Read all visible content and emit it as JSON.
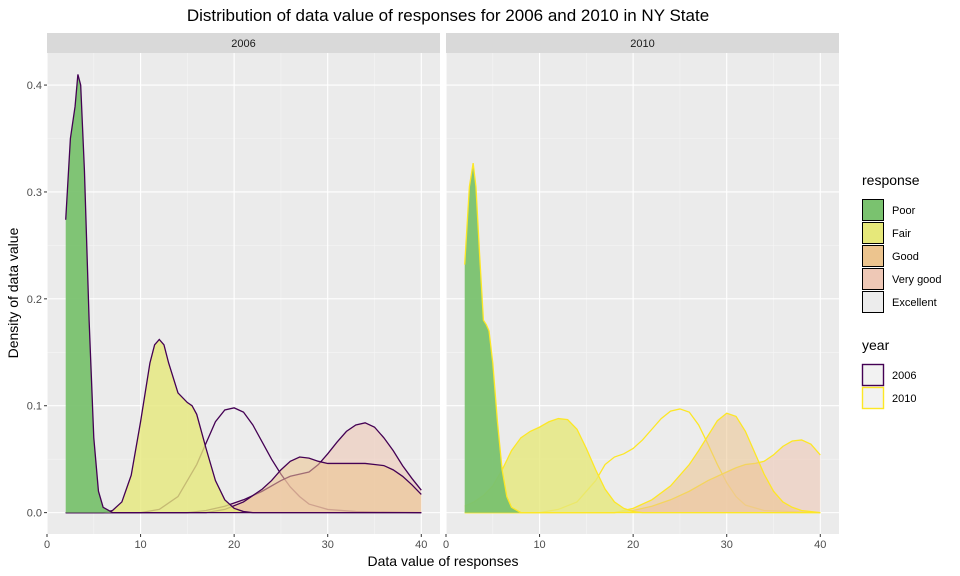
{
  "chart_data": {
    "type": "area",
    "title": "Distribution of data value of responses for 2006 and 2010 in NY State",
    "xlabel": "Data value of responses",
    "ylabel": "Density of data value",
    "xlim": [
      0,
      42
    ],
    "ylim": [
      -0.02,
      0.43
    ],
    "x_ticks": [
      0,
      10,
      20,
      30,
      40
    ],
    "y_ticks": [
      0.0,
      0.1,
      0.2,
      0.3,
      0.4
    ],
    "x_tick_labels": [
      "0",
      "10",
      "20",
      "30",
      "40"
    ],
    "y_tick_labels": [
      "0.0",
      "0.1",
      "0.2",
      "0.3",
      "0.4"
    ],
    "grid": true,
    "legend_placement": "right",
    "legends": [
      {
        "title": "response",
        "kind": "fill",
        "entries": [
          {
            "label": "Poor",
            "color": "#7ac26f"
          },
          {
            "label": "Fair",
            "color": "#e6e87a"
          },
          {
            "label": "Good",
            "color": "#ecc48e"
          },
          {
            "label": "Very good",
            "color": "#eec8b6"
          },
          {
            "label": "Excellent",
            "color": "#ececec"
          }
        ]
      },
      {
        "title": "year",
        "kind": "color",
        "entries": [
          {
            "label": "2006",
            "color": "#440154"
          },
          {
            "label": "2010",
            "color": "#fde725"
          }
        ]
      }
    ],
    "panels": [
      {
        "strip": "2006",
        "line_color": "#440154",
        "series": [
          {
            "name": "Excellent",
            "fill": "#ececec",
            "fill_opacity": 0.55,
            "points": [
              [
                2,
                0
              ],
              [
                10,
                0
              ],
              [
                12,
                0.003
              ],
              [
                14,
                0.015
              ],
              [
                16,
                0.045
              ],
              [
                17,
                0.065
              ],
              [
                18,
                0.085
              ],
              [
                19,
                0.096
              ],
              [
                20,
                0.098
              ],
              [
                21,
                0.094
              ],
              [
                22,
                0.082
              ],
              [
                23,
                0.066
              ],
              [
                24,
                0.05
              ],
              [
                25,
                0.036
              ],
              [
                26,
                0.024
              ],
              [
                27,
                0.015
              ],
              [
                28,
                0.008
              ],
              [
                30,
                0.003
              ],
              [
                33,
                0.001
              ],
              [
                40,
                0
              ]
            ]
          },
          {
            "name": "Very good",
            "fill": "#eec8b6",
            "fill_opacity": 0.6,
            "points": [
              [
                2,
                0
              ],
              [
                15,
                0
              ],
              [
                17,
                0.002
              ],
              [
                19,
                0.006
              ],
              [
                21,
                0.012
              ],
              [
                23,
                0.02
              ],
              [
                25,
                0.03
              ],
              [
                26,
                0.034
              ],
              [
                27,
                0.036
              ],
              [
                28,
                0.038
              ],
              [
                29,
                0.045
              ],
              [
                30,
                0.055
              ],
              [
                31,
                0.066
              ],
              [
                32,
                0.076
              ],
              [
                33,
                0.082
              ],
              [
                34,
                0.084
              ],
              [
                35,
                0.08
              ],
              [
                36,
                0.07
              ],
              [
                37,
                0.058
              ],
              [
                38,
                0.044
              ],
              [
                39,
                0.032
              ],
              [
                40,
                0.021
              ]
            ]
          },
          {
            "name": "Good",
            "fill": "#ecc48e",
            "fill_opacity": 0.55,
            "points": [
              [
                2,
                0
              ],
              [
                17,
                0
              ],
              [
                19,
                0.003
              ],
              [
                21,
                0.01
              ],
              [
                23,
                0.022
              ],
              [
                24,
                0.03
              ],
              [
                25,
                0.04
              ],
              [
                26,
                0.048
              ],
              [
                27,
                0.052
              ],
              [
                28,
                0.051
              ],
              [
                29,
                0.048
              ],
              [
                30,
                0.046
              ],
              [
                31,
                0.046
              ],
              [
                32,
                0.046
              ],
              [
                33,
                0.046
              ],
              [
                34,
                0.046
              ],
              [
                35,
                0.045
              ],
              [
                36,
                0.044
              ],
              [
                37,
                0.04
              ],
              [
                38,
                0.034
              ],
              [
                39,
                0.026
              ],
              [
                40,
                0.017
              ]
            ]
          },
          {
            "name": "Fair",
            "fill": "#e6e87a",
            "fill_opacity": 0.8,
            "points": [
              [
                2,
                0
              ],
              [
                6,
                0
              ],
              [
                7,
                0.002
              ],
              [
                8,
                0.01
              ],
              [
                9,
                0.035
              ],
              [
                10,
                0.085
              ],
              [
                11,
                0.14
              ],
              [
                11.5,
                0.157
              ],
              [
                12,
                0.162
              ],
              [
                12.5,
                0.157
              ],
              [
                13,
                0.14
              ],
              [
                14,
                0.112
              ],
              [
                15,
                0.103
              ],
              [
                15.5,
                0.1
              ],
              [
                16,
                0.092
              ],
              [
                17,
                0.06
              ],
              [
                18,
                0.03
              ],
              [
                19,
                0.012
              ],
              [
                20,
                0.004
              ],
              [
                21,
                0.001
              ],
              [
                22,
                0
              ],
              [
                40,
                0
              ]
            ]
          },
          {
            "name": "Poor",
            "fill": "#7ac26f",
            "fill_opacity": 0.95,
            "points": [
              [
                2,
                0.274
              ],
              [
                2.5,
                0.35
              ],
              [
                3,
                0.38
              ],
              [
                3.3,
                0.41
              ],
              [
                3.6,
                0.4
              ],
              [
                4,
                0.32
              ],
              [
                4.5,
                0.18
              ],
              [
                5,
                0.07
              ],
              [
                5.5,
                0.02
              ],
              [
                6,
                0.005
              ],
              [
                7,
                0
              ],
              [
                40,
                0
              ]
            ]
          }
        ]
      },
      {
        "strip": "2010",
        "line_color": "#fde725",
        "series": [
          {
            "name": "Excellent",
            "fill": "#ececec",
            "fill_opacity": 0.55,
            "points": [
              [
                2,
                0
              ],
              [
                10,
                0
              ],
              [
                12,
                0.003
              ],
              [
                14,
                0.01
              ],
              [
                16,
                0.03
              ],
              [
                17,
                0.045
              ],
              [
                18,
                0.052
              ],
              [
                19,
                0.055
              ],
              [
                20,
                0.06
              ],
              [
                21,
                0.068
              ],
              [
                22,
                0.078
              ],
              [
                23,
                0.088
              ],
              [
                24,
                0.095
              ],
              [
                25,
                0.097
              ],
              [
                26,
                0.094
              ],
              [
                27,
                0.082
              ],
              [
                28,
                0.064
              ],
              [
                29,
                0.045
              ],
              [
                30,
                0.028
              ],
              [
                31,
                0.015
              ],
              [
                32,
                0.007
              ],
              [
                34,
                0.002
              ],
              [
                40,
                0
              ]
            ]
          },
          {
            "name": "Very good",
            "fill": "#eec8b6",
            "fill_opacity": 0.6,
            "points": [
              [
                2,
                0
              ],
              [
                18,
                0
              ],
              [
                20,
                0.002
              ],
              [
                22,
                0.006
              ],
              [
                24,
                0.012
              ],
              [
                26,
                0.02
              ],
              [
                28,
                0.03
              ],
              [
                30,
                0.038
              ],
              [
                31,
                0.042
              ],
              [
                32,
                0.045
              ],
              [
                33,
                0.046
              ],
              [
                34,
                0.048
              ],
              [
                35,
                0.054
              ],
              [
                36,
                0.062
              ],
              [
                37,
                0.067
              ],
              [
                38,
                0.068
              ],
              [
                39,
                0.064
              ],
              [
                40,
                0.054
              ]
            ]
          },
          {
            "name": "Good",
            "fill": "#ecc48e",
            "fill_opacity": 0.55,
            "points": [
              [
                2,
                0
              ],
              [
                18,
                0
              ],
              [
                20,
                0.004
              ],
              [
                22,
                0.012
              ],
              [
                24,
                0.025
              ],
              [
                26,
                0.045
              ],
              [
                27,
                0.058
              ],
              [
                28,
                0.072
              ],
              [
                29,
                0.086
              ],
              [
                30,
                0.093
              ],
              [
                31,
                0.09
              ],
              [
                32,
                0.076
              ],
              [
                33,
                0.056
              ],
              [
                34,
                0.036
              ],
              [
                35,
                0.02
              ],
              [
                36,
                0.01
              ],
              [
                37,
                0.005
              ],
              [
                38,
                0.002
              ],
              [
                40,
                0
              ]
            ]
          },
          {
            "name": "Fair",
            "fill": "#e6e87a",
            "fill_opacity": 0.8,
            "points": [
              [
                2,
                0.006
              ],
              [
                3,
                0.01
              ],
              [
                4,
                0.016
              ],
              [
                5,
                0.025
              ],
              [
                6,
                0.04
              ],
              [
                7,
                0.058
              ],
              [
                8,
                0.07
              ],
              [
                9,
                0.076
              ],
              [
                10,
                0.08
              ],
              [
                11,
                0.085
              ],
              [
                12,
                0.088
              ],
              [
                13,
                0.087
              ],
              [
                14,
                0.078
              ],
              [
                15,
                0.06
              ],
              [
                16,
                0.04
              ],
              [
                17,
                0.022
              ],
              [
                18,
                0.01
              ],
              [
                19,
                0.004
              ],
              [
                20,
                0.001
              ],
              [
                21,
                0
              ],
              [
                40,
                0
              ]
            ]
          },
          {
            "name": "Poor",
            "fill": "#7ac26f",
            "fill_opacity": 0.95,
            "points": [
              [
                2,
                0.232
              ],
              [
                2.5,
                0.305
              ],
              [
                2.9,
                0.327
              ],
              [
                3.2,
                0.305
              ],
              [
                3.6,
                0.24
              ],
              [
                4,
                0.18
              ],
              [
                4.3,
                0.176
              ],
              [
                4.6,
                0.17
              ],
              [
                5,
                0.14
              ],
              [
                5.5,
                0.085
              ],
              [
                6,
                0.04
              ],
              [
                6.5,
                0.015
              ],
              [
                7,
                0.005
              ],
              [
                8,
                0
              ],
              [
                40,
                0
              ]
            ]
          }
        ]
      }
    ]
  }
}
